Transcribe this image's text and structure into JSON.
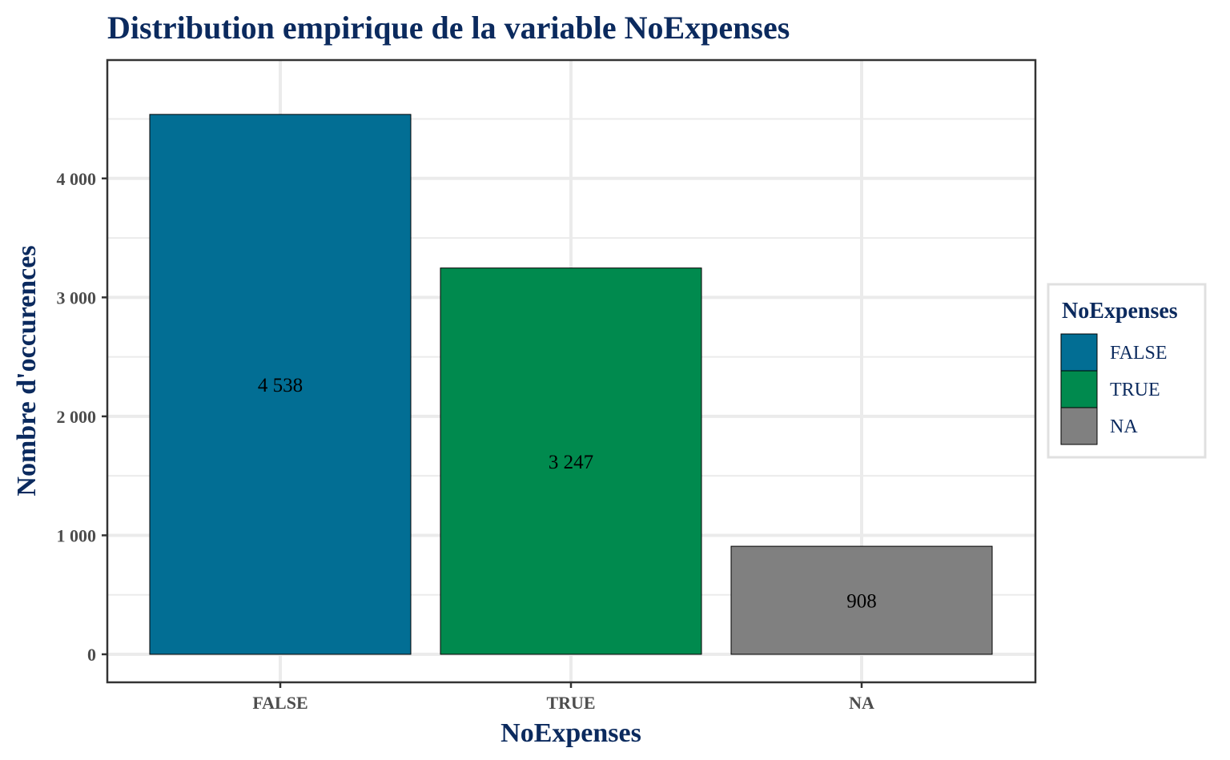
{
  "chart_data": {
    "type": "bar",
    "title": "Distribution empirique de la variable NoExpenses",
    "xlabel": "NoExpenses",
    "ylabel": "Nombre d'occurences",
    "categories": [
      "FALSE",
      "TRUE",
      "NA"
    ],
    "values": [
      4538,
      3247,
      908
    ],
    "value_labels": [
      "4 538",
      "3 247",
      "908"
    ],
    "colors": [
      "#026e94",
      "#008a4e",
      "#808080"
    ],
    "ylim": [
      0,
      4766
    ],
    "y_ticks": [
      0,
      1000,
      2000,
      3000,
      4000
    ],
    "y_tick_labels": [
      "0",
      "1 000",
      "2 000",
      "3 000",
      "4 000"
    ],
    "grid": true,
    "legend": {
      "title": "NoExpenses",
      "position": "right",
      "items": [
        "FALSE",
        "TRUE",
        "NA"
      ]
    }
  }
}
